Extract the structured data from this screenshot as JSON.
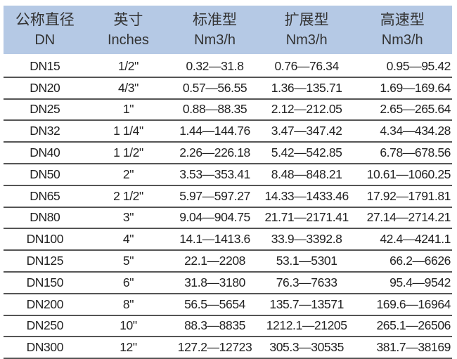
{
  "header": [
    {
      "cn": "公称直径",
      "en": "DN"
    },
    {
      "cn": "英寸",
      "en": "Inches"
    },
    {
      "cn": "标准型",
      "en": "Nm3/h"
    },
    {
      "cn": "扩展型",
      "en": "Nm3/h"
    },
    {
      "cn": "高速型",
      "en": "Nm3/h"
    }
  ],
  "rows": [
    [
      "DN15",
      "1/2\"",
      "0.32—31.8",
      "0.76—76.34",
      "0.95—95.42"
    ],
    [
      "DN20",
      "4/3\"",
      "0.57—56.55",
      "1.36—135.71",
      "1.69—169.64"
    ],
    [
      "DN25",
      "1\"",
      "0.88—88.35",
      "2.12—212.05",
      "2.65—265.64"
    ],
    [
      "DN32",
      "1 1/4\"",
      "1.44—144.76",
      "3.47—347.42",
      "4.34—434.28"
    ],
    [
      "DN40",
      "1 1/2\"",
      "2.26—226.18",
      "5.42—542.85",
      "6.78—678.56"
    ],
    [
      "DN50",
      "2\"",
      "3.53—353.41",
      "8.48—848.21",
      "10.61—1060.25"
    ],
    [
      "DN65",
      "2 1/2\"",
      "5.97—597.27",
      "14.33—1433.46",
      "17.92—1791.81"
    ],
    [
      "DN80",
      "3\"",
      "9.04—904.75",
      "21.71—2171.41",
      "27.14—2714.21"
    ],
    [
      "DN100",
      "4\"",
      "14.1—1413.6",
      "33.9—3392.8",
      "42.4—4241.1"
    ],
    [
      "DN125",
      "5\"",
      "22.1—2208",
      "53.1—5301",
      "66.2—6626"
    ],
    [
      "DN150",
      "6\"",
      "31.8—3180",
      "76.3—7633",
      "95.4—9542"
    ],
    [
      "DN200",
      "8\"",
      "56.5—5654",
      "135.7—13571",
      "169.6—16964"
    ],
    [
      "DN250",
      "10\"",
      "88.3—8835",
      "1212.1—21205",
      "265.1—26506"
    ],
    [
      "DN300",
      "12\"",
      "127.2—12723",
      "305.3—30535",
      "381.7—38169"
    ]
  ],
  "colors": {
    "header_bg": "#b5c9e5",
    "rule": "#555555"
  }
}
